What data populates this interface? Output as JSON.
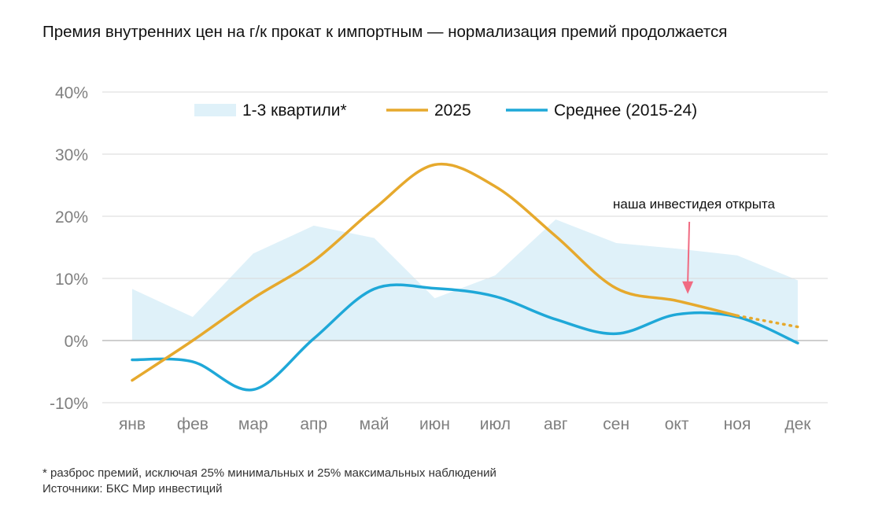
{
  "title": "Премия внутренних цен на г/к прокат к импортным — нормализация премий продолжается",
  "footnotes": {
    "note": "* разброс премий, исключая 25% минимальных и 25% максимальных наблюдений",
    "source": "Источники: БКС Мир инвестиций"
  },
  "colors": {
    "band": "#dff1f9",
    "series_2025": "#e6a92d",
    "series_avg": "#1fa8d8",
    "grid": "#d9d9d9",
    "zero_line": "#bfbfbf",
    "arrow": "#f06b82"
  },
  "chart_data": {
    "type": "line",
    "title": "Премия внутренних цен на г/к прокат к импортным — нормализация премий продолжается",
    "categories": [
      "янв",
      "фев",
      "мар",
      "апр",
      "май",
      "июн",
      "июл",
      "авг",
      "сен",
      "окт",
      "ноя",
      "дек"
    ],
    "y_ticks": [
      -10,
      0,
      10,
      20,
      30,
      40
    ],
    "y_tick_labels": [
      "-10%",
      "0%",
      "10%",
      "20%",
      "30%",
      "40%"
    ],
    "ylim": [
      -10,
      40
    ],
    "xlabel": "",
    "ylabel": "",
    "grid": true,
    "legend": {
      "placement": "top-center",
      "entries": [
        "1-3 квартили*",
        "2025",
        "Среднее (2015-24)"
      ]
    },
    "band": {
      "name": "1-3 квартили*",
      "lower": [
        0,
        0,
        0,
        0,
        0,
        0,
        0,
        0,
        0,
        0,
        0,
        0
      ],
      "upper": [
        8.3,
        3.8,
        14.0,
        18.5,
        16.5,
        6.8,
        10.5,
        19.5,
        15.7,
        14.8,
        13.7,
        9.7
      ]
    },
    "series": [
      {
        "name": "2025",
        "values": [
          -6.4,
          0.0,
          6.8,
          12.8,
          21.2,
          28.3,
          24.8,
          16.8,
          8.4,
          6.4,
          4.0,
          null
        ],
        "forecast": {
          "from_index": 10,
          "to_value": 2.2,
          "style": "dotted"
        }
      },
      {
        "name": "Среднее (2015-24)",
        "values": [
          -3.1,
          -3.4,
          -7.9,
          0.3,
          8.3,
          8.4,
          7.1,
          3.4,
          1.1,
          4.2,
          3.8,
          -0.4
        ]
      }
    ],
    "annotations": [
      {
        "text": "наша инвестидея открыта",
        "points_to_category": "окт",
        "arrow_to_value": 7.0
      }
    ]
  }
}
